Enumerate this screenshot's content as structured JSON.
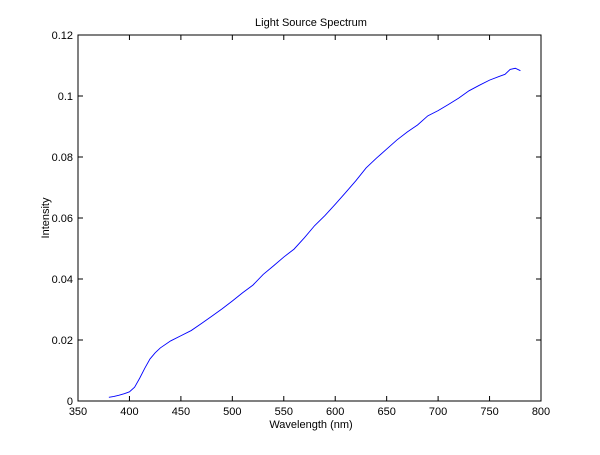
{
  "chart_data": {
    "type": "line",
    "title": "Light Source Spectrum",
    "xlabel": "Wavelength (nm)",
    "ylabel": "Intensity",
    "xlim": [
      350,
      800
    ],
    "ylim": [
      0,
      0.12
    ],
    "xticks": [
      350,
      400,
      450,
      500,
      550,
      600,
      650,
      700,
      750,
      800
    ],
    "yticks": [
      0,
      0.02,
      0.04,
      0.06,
      0.08,
      0.1,
      0.12
    ],
    "xtick_labels": [
      "350",
      "400",
      "450",
      "500",
      "550",
      "600",
      "650",
      "700",
      "750",
      "800"
    ],
    "ytick_labels": [
      "0",
      "0.02",
      "0.04",
      "0.06",
      "0.08",
      "0.1",
      "0.12"
    ],
    "grid": false,
    "line_color": "#0000ff",
    "series": [
      {
        "x": [
          380,
          385,
          390,
          395,
          400,
          405,
          410,
          415,
          420,
          425,
          430,
          440,
          450,
          460,
          470,
          480,
          490,
          500,
          510,
          520,
          530,
          540,
          550,
          560,
          570,
          580,
          590,
          600,
          610,
          620,
          630,
          640,
          650,
          660,
          670,
          680,
          690,
          700,
          710,
          720,
          730,
          740,
          750,
          760,
          765,
          770,
          775,
          780
        ],
        "y": [
          0.0012,
          0.0015,
          0.0019,
          0.0024,
          0.003,
          0.0045,
          0.0075,
          0.0108,
          0.0138,
          0.0158,
          0.0174,
          0.0197,
          0.0214,
          0.0231,
          0.0254,
          0.0278,
          0.0302,
          0.0328,
          0.0355,
          0.038,
          0.0415,
          0.0443,
          0.0472,
          0.0498,
          0.0535,
          0.0575,
          0.0608,
          0.0645,
          0.0683,
          0.0722,
          0.0764,
          0.0796,
          0.0826,
          0.0856,
          0.0882,
          0.0905,
          0.0935,
          0.0952,
          0.0972,
          0.0993,
          0.1017,
          0.1035,
          0.1052,
          0.1065,
          0.1071,
          0.1087,
          0.1091,
          0.1083
        ]
      }
    ]
  }
}
